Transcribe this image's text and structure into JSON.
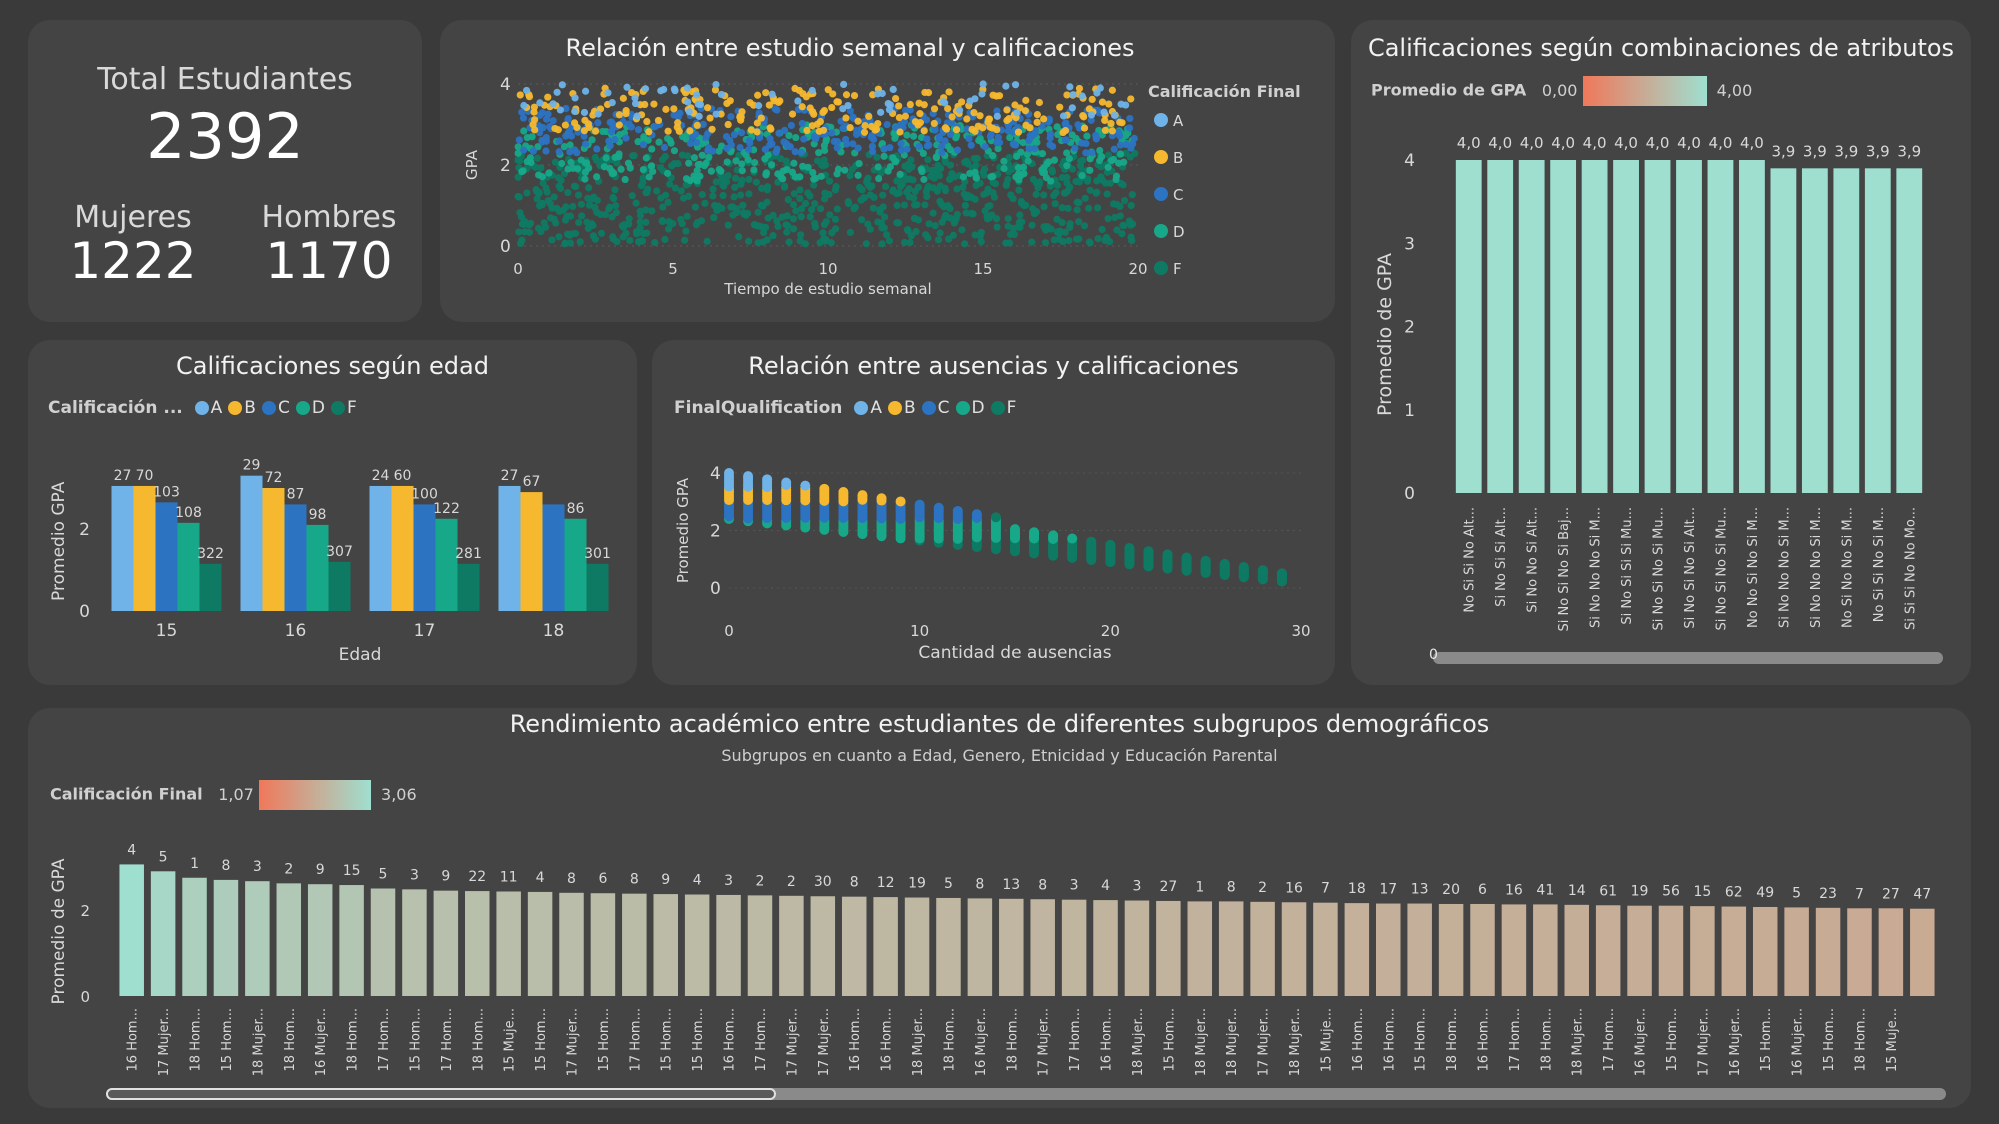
{
  "colors": {
    "A": "#6fb3e8",
    "B": "#f5b82e",
    "C": "#2c73c2",
    "D": "#17a889",
    "F": "#0f7a63",
    "bar_teal": "#9fdfd0"
  },
  "kpi": {
    "total_label": "Total Estudiantes",
    "total_value": "2392",
    "women_label": "Mujeres",
    "women_value": "1222",
    "men_label": "Hombres",
    "men_value": "1170"
  },
  "scatter1": {
    "title": "Relación entre estudio semanal y calificaciones",
    "legend_title": "Calificación Final",
    "legend": [
      "A",
      "B",
      "C",
      "D",
      "F"
    ],
    "xlabel": "Tiempo de estudio semanal",
    "ylabel": "GPA",
    "xticks": [
      "0",
      "5",
      "10",
      "15",
      "20"
    ],
    "yticks": [
      "0",
      "2",
      "4"
    ]
  },
  "combos": {
    "title": "Calificaciones según combinaciones de atributos",
    "legend_title": "Promedio de GPA",
    "legend_min": "0,00",
    "legend_max": "4,00",
    "ylabel": "Promedio de GPA",
    "yticks": [
      "0",
      "1",
      "2",
      "3",
      "4"
    ],
    "scroll_label": "0"
  },
  "age_chart": {
    "title": "Calificaciones según edad",
    "legend_title": "Calificación ...",
    "legend": [
      "A",
      "B",
      "C",
      "D",
      "F"
    ],
    "xlabel": "Edad",
    "ylabel": "Promedio GPA",
    "yticks": [
      "0",
      "2"
    ]
  },
  "scatter2": {
    "title": "Relación entre ausencias y calificaciones",
    "legend_title": "FinalQualification",
    "legend": [
      "A",
      "B",
      "C",
      "D",
      "F"
    ],
    "xlabel": "Cantidad de ausencias",
    "ylabel": "Promedio GPA",
    "xticks": [
      "0",
      "10",
      "20",
      "30"
    ],
    "yticks": [
      "0",
      "2",
      "4"
    ]
  },
  "subgroups": {
    "title": "Rendimiento académico entre estudiantes de diferentes subgrupos demográficos",
    "subtitle": "Subgrupos en cuanto a Edad, Genero, Etnicidad y Educación Parental",
    "legend_title": "Calificación Final",
    "legend_min": "1,07",
    "legend_max": "3,06",
    "ylabel": "Promedio de GPA",
    "yticks": [
      "0",
      "2"
    ]
  },
  "chart_data": [
    {
      "type": "bar",
      "id": "age",
      "categories": [
        "15",
        "16",
        "17",
        "18"
      ],
      "series": [
        {
          "name": "A",
          "values": [
            3.05,
            3.3,
            3.05,
            3.05
          ],
          "labels": [
            "27",
            "29",
            "24",
            "27"
          ]
        },
        {
          "name": "B",
          "values": [
            3.05,
            3.0,
            3.05,
            2.9
          ],
          "labels": [
            "70",
            "72",
            "60",
            "67"
          ]
        },
        {
          "name": "C",
          "values": [
            2.65,
            2.6,
            2.6,
            2.6
          ],
          "labels": [
            "103",
            "87",
            "100",
            ""
          ]
        },
        {
          "name": "D",
          "values": [
            2.15,
            2.1,
            2.25,
            2.25
          ],
          "labels": [
            "108",
            "98",
            "122",
            "86"
          ]
        },
        {
          "name": "F",
          "values": [
            1.15,
            1.2,
            1.15,
            1.15
          ],
          "labels": [
            "322",
            "307",
            "281",
            "301"
          ]
        }
      ],
      "ylim": [
        0,
        4
      ]
    },
    {
      "type": "bar",
      "id": "combos",
      "categories": [
        "No Si Si No Alt...",
        "Si No Si Si Alt...",
        "Si No No Si Alt...",
        "Si No Si No Si Baj...",
        "Si No No No Si M...",
        "Si No Si Si Si Mu...",
        "Si No Si No Si Mu...",
        "Si No Si No Si Alt...",
        "Si No Si No Si Mu...",
        "No No Si No Si M...",
        "Si No No No Si M...",
        "Si No No No Si M...",
        "No Si No No Si M...",
        "No Si Si No Si M...",
        "Si Si Si No No Mo..."
      ],
      "values": [
        4.0,
        4.0,
        4.0,
        4.0,
        4.0,
        4.0,
        4.0,
        4.0,
        4.0,
        4.0,
        3.9,
        3.9,
        3.9,
        3.9,
        3.9
      ],
      "labels": [
        "4,0",
        "4,0",
        "4,0",
        "4,0",
        "4,0",
        "4,0",
        "4,0",
        "4,0",
        "4,0",
        "4,0",
        "3,9",
        "3,9",
        "3,9",
        "3,9",
        "3,9"
      ],
      "ylim": [
        0,
        4.5
      ]
    },
    {
      "type": "bar",
      "id": "subgroups",
      "categories": [
        "16 Hom...",
        "17 Mujer...",
        "18 Hom...",
        "15 Hom...",
        "18 Mujer...",
        "18 Hom...",
        "16 Mujer...",
        "18 Hom...",
        "17 Hom...",
        "15 Hom...",
        "17 Hom...",
        "18 Hom...",
        "15 Muje...",
        "15 Hom...",
        "17 Mujer...",
        "15 Hom...",
        "17 Hom...",
        "15 Hom...",
        "15 Hom...",
        "16 Hom...",
        "17 Hom...",
        "17 Mujer...",
        "17 Mujer...",
        "16 Hom...",
        "16 Hom...",
        "18 Mujer...",
        "18 Hom...",
        "16 Mujer...",
        "18 Hom...",
        "17 Mujer...",
        "17 Hom...",
        "16 Hom...",
        "18 Mujer...",
        "15 Hom...",
        "18 Mujer...",
        "18 Mujer...",
        "17 Mujer...",
        "18 Mujer...",
        "15 Muje...",
        "16 Hom...",
        "16 Hom...",
        "15 Hom...",
        "18 Hom...",
        "16 Hom...",
        "17 Hom...",
        "18 Hom...",
        "18 Mujer...",
        "17 Hom...",
        "16 Mujer...",
        "15 Hom...",
        "17 Mujer...",
        "16 Mujer...",
        "15 Hom...",
        "16 Mujer...",
        "15 Hom...",
        "18 Hom...",
        "15 Muje..."
      ],
      "values": [
        3.06,
        2.9,
        2.75,
        2.7,
        2.67,
        2.62,
        2.6,
        2.58,
        2.5,
        2.48,
        2.45,
        2.44,
        2.43,
        2.42,
        2.4,
        2.39,
        2.38,
        2.37,
        2.36,
        2.35,
        2.34,
        2.33,
        2.32,
        2.31,
        2.3,
        2.29,
        2.28,
        2.27,
        2.26,
        2.25,
        2.24,
        2.23,
        2.22,
        2.21,
        2.2,
        2.2,
        2.19,
        2.18,
        2.17,
        2.16,
        2.15,
        2.15,
        2.14,
        2.14,
        2.13,
        2.13,
        2.12,
        2.11,
        2.1,
        2.1,
        2.09,
        2.08,
        2.07,
        2.06,
        2.05,
        2.04,
        2.04
      ],
      "labels": [
        "4",
        "5",
        "1",
        "8",
        "3",
        "2",
        "9",
        "15",
        "5",
        "3",
        "9",
        "22",
        "11",
        "4",
        "8",
        "6",
        "8",
        "9",
        "4",
        "3",
        "2",
        "2",
        "30",
        "8",
        "12",
        "19",
        "5",
        "8",
        "13",
        "8",
        "3",
        "4",
        "3",
        "27",
        "1",
        "8",
        "2",
        "16",
        "7",
        "18",
        "17",
        "13",
        "20",
        "6",
        "16",
        "41",
        "14",
        "61",
        "19",
        "56",
        "15",
        "62",
        "49",
        "5",
        "23",
        "7",
        "27"
      ],
      "extra_label": "47",
      "ylim": [
        0,
        3.3
      ]
    }
  ]
}
